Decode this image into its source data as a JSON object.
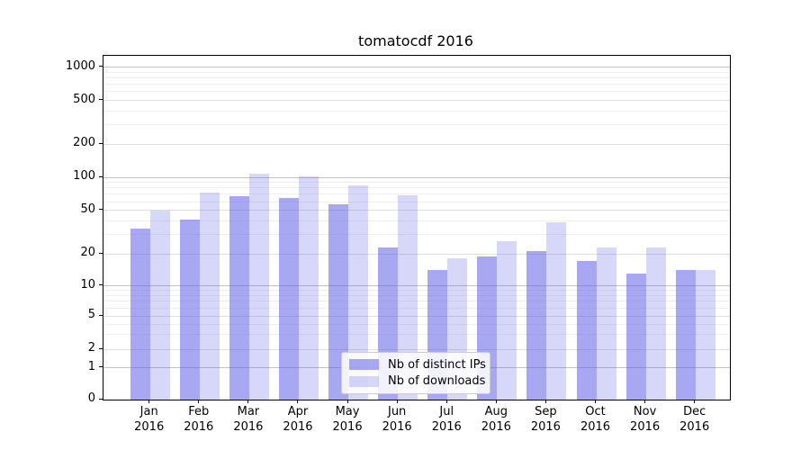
{
  "title": "tomatocdf 2016",
  "chart_data": {
    "type": "bar",
    "title": "tomatocdf 2016",
    "categories": [
      "Jan 2016",
      "Feb 2016",
      "Mar 2016",
      "Apr 2016",
      "May 2016",
      "Jun 2016",
      "Jul 2016",
      "Aug 2016",
      "Sep 2016",
      "Oct 2016",
      "Nov 2016",
      "Dec 2016"
    ],
    "x_tick_line1": [
      "Jan",
      "Feb",
      "Mar",
      "Apr",
      "May",
      "Jun",
      "Jul",
      "Aug",
      "Sep",
      "Oct",
      "Nov",
      "Dec"
    ],
    "x_tick_line2": [
      "2016",
      "2016",
      "2016",
      "2016",
      "2016",
      "2016",
      "2016",
      "2016",
      "2016",
      "2016",
      "2016",
      "2016"
    ],
    "series": [
      {
        "name": "Nb of distinct IPs",
        "values": [
          34,
          41,
          67,
          65,
          57,
          23,
          14,
          19,
          21,
          17,
          13,
          14
        ],
        "color": "rgba(96,96,232,0.55)"
      },
      {
        "name": "Nb of downloads",
        "values": [
          50,
          72,
          108,
          102,
          84,
          68,
          18,
          26,
          39,
          23,
          23,
          14
        ],
        "color": "rgba(96,96,232,0.25)"
      }
    ],
    "yscale": "log (symlog-like, linear segment from 0 to 1)",
    "ylim": [
      0,
      1300
    ],
    "ytick_labels": [
      "1000",
      "500",
      "200",
      "100",
      "50",
      "20",
      "10",
      "5",
      "2",
      "1",
      "0"
    ],
    "ytick_values": [
      1000,
      500,
      200,
      100,
      50,
      20,
      10,
      5,
      2,
      1,
      0
    ],
    "grid": true,
    "legend_position": "lower center",
    "xlabel": "",
    "ylabel": ""
  },
  "colors": {
    "bar_distinct_ips": "rgba(96,96,232,0.55)",
    "bar_downloads": "rgba(96,96,232,0.25)",
    "grid_major": "#c2c2c2",
    "grid_minor": "#dedede",
    "grid_faint": "#efefef",
    "spine": "#000000"
  }
}
